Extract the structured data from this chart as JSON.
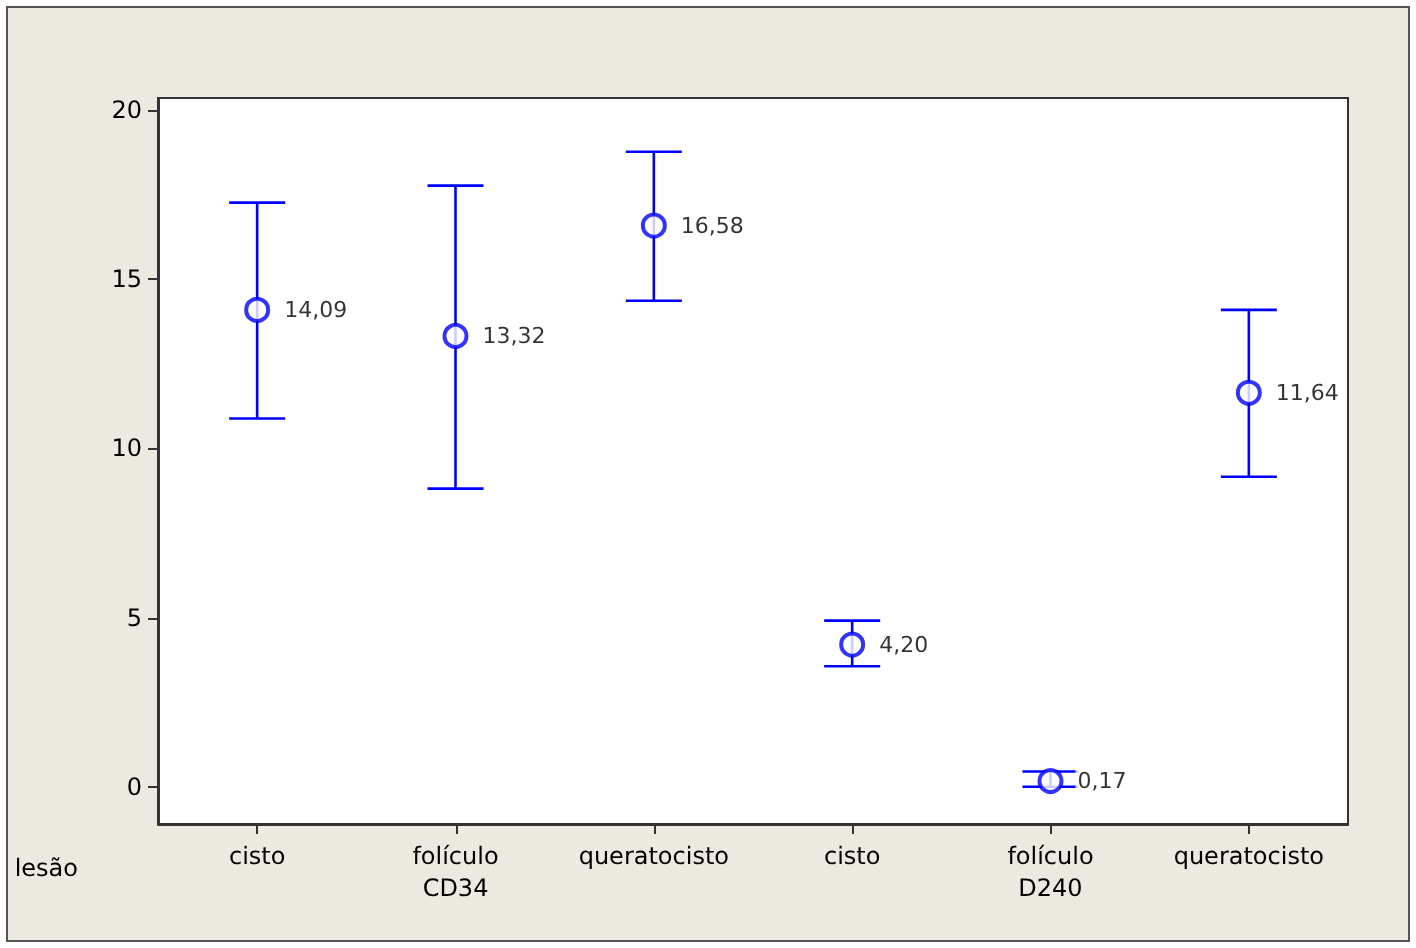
{
  "chart_data": {
    "type": "scatter",
    "xlabel": "lesão",
    "categories": [
      "cisto",
      "folículo\nCD34",
      "queratocisto",
      "cisto",
      "folículo\nD240",
      "queratocisto"
    ],
    "values": [
      14.09,
      13.32,
      16.58,
      4.2,
      0.17,
      11.64
    ],
    "value_labels": [
      "14,09",
      "13,32",
      "16,58",
      "4,20",
      "0,17",
      "11,64"
    ],
    "errors": [
      [
        10.88,
        17.26
      ],
      [
        8.81,
        17.76
      ],
      [
        14.36,
        18.76
      ],
      [
        3.56,
        4.91
      ],
      [
        0,
        0.45
      ],
      [
        9.16,
        14.09
      ]
    ],
    "color": "#0000ff",
    "marker": "circle",
    "ylim": [
      -1.1,
      20.35
    ],
    "yticks": [
      0,
      5,
      10,
      15,
      20
    ],
    "grid": false
  }
}
